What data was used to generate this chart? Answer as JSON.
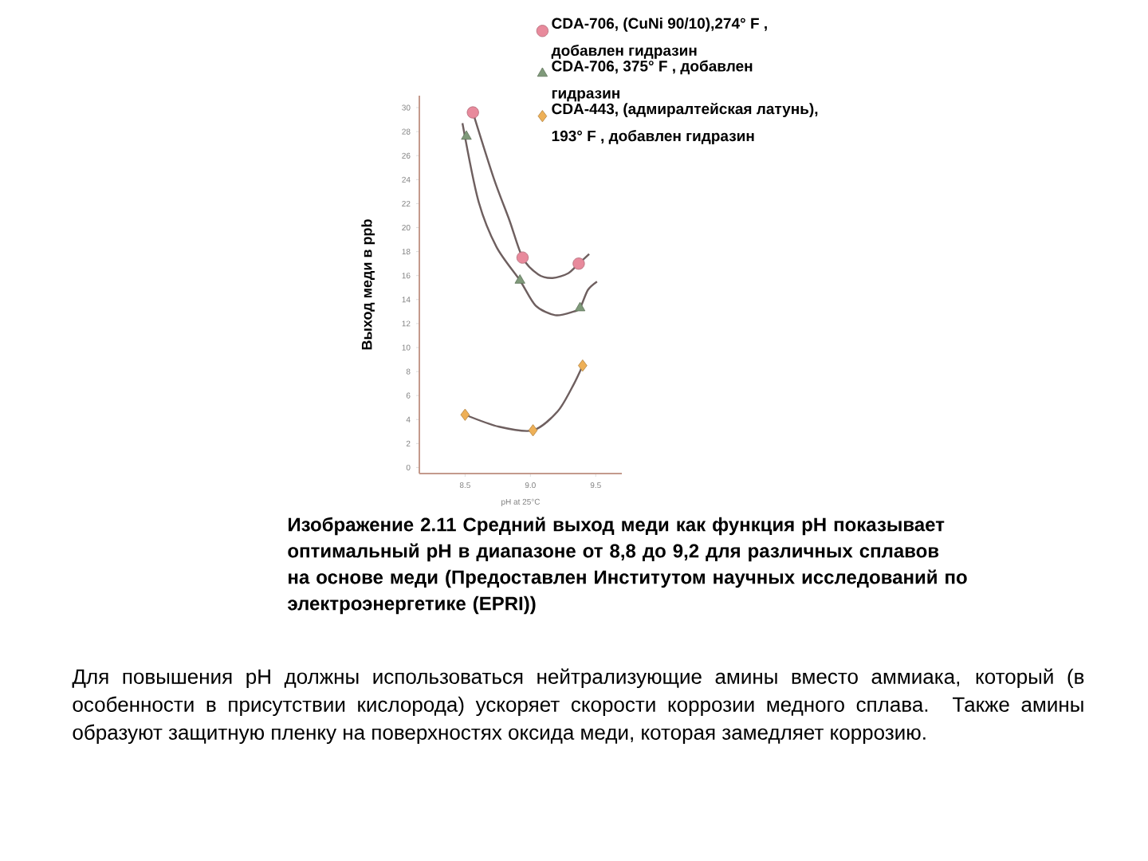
{
  "chart_data": {
    "type": "line",
    "xlabel": "pH at 25°C",
    "ylabel": "Выход меди в ppb",
    "xlim": [
      8.15,
      9.7
    ],
    "ylim": [
      -0.5,
      31
    ],
    "xticks": [
      8.5,
      {
        "value": 9,
        "label": "9.0"
      },
      9.5
    ],
    "yticks": [
      0,
      2,
      4,
      6,
      8,
      10,
      12,
      14,
      16,
      18,
      20,
      22,
      24,
      26,
      28,
      30
    ],
    "legend": "top right",
    "series": [
      {
        "color": "#6e5f5f",
        "marker": "none",
        "x": [
          8.56,
          8.72,
          8.84,
          8.94,
          9.06,
          9.17,
          9.29,
          9.37,
          9.45
        ],
        "values": [
          29.6,
          24.1,
          20.6,
          17.5,
          16.1,
          15.8,
          16.2,
          17.0,
          17.8
        ]
      },
      {
        "color": "#6e5f5f",
        "marker": "none",
        "x": [
          8.48,
          8.6,
          8.74,
          8.92,
          9.04,
          9.19,
          9.33,
          9.38,
          9.44,
          9.51
        ],
        "values": [
          28.7,
          22.3,
          18.4,
          15.6,
          13.5,
          12.7,
          13.0,
          13.3,
          14.8,
          15.5
        ]
      },
      {
        "color": "#6e5f5f",
        "marker": "none",
        "x": [
          8.5,
          8.76,
          9.02,
          9.21,
          9.33,
          9.4
        ],
        "values": [
          4.4,
          3.4,
          3.1,
          4.7,
          6.9,
          8.5
        ]
      },
      {
        "type": "scatter",
        "name": "CDA-706, (CuNi 90/10),274° F , добавлен гидразин",
        "color": "#e88a9c",
        "marker": "circle",
        "x": [
          8.56,
          8.94,
          9.37
        ],
        "values": [
          29.6,
          17.5,
          17.0
        ]
      },
      {
        "type": "scatter",
        "name": "CDA-706, 375° F , добавлен гидразин",
        "color": "#7f9a7a",
        "marker": "triangle",
        "x": [
          8.51,
          8.92,
          9.38
        ],
        "values": [
          27.6,
          15.6,
          13.3
        ]
      },
      {
        "type": "scatter",
        "name": "CDA-443, (адмиралтейская латунь), 193° F , добавлен гидразин",
        "color": "#eeb057",
        "marker": "diamond",
        "x": [
          8.5,
          9.02,
          9.4
        ],
        "values": [
          4.4,
          3.1,
          8.5
        ]
      }
    ],
    "annotations": [
      "Изображение 2.11 Средний выход меди как функция pH показывает оптимальный pH в диапазоне от 8,8 до 9,2 для различных сплавов на основе меди (Предоставлен Институтом научных исследований по электроэнергетике (EPRI))",
      "Для повышения pH должны использоваться нейтрализующие амины вместо аммиака, который (в особенности в присутствии кислорода) ускоряет скорости коррозии медного сплава. Также амины образуют защитную пленку на поверхностях оксида меди, которая замедляет коррозию."
    ]
  }
}
